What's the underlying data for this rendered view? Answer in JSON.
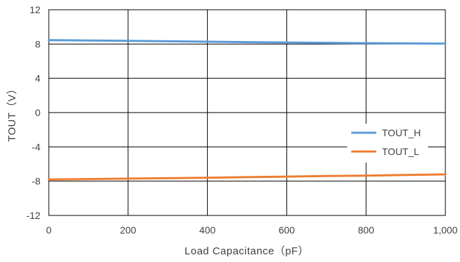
{
  "chart_data": {
    "type": "line",
    "title": "",
    "xlabel": "Load Capacitance（pF）",
    "ylabel": "TOUT（V）",
    "xlim": [
      0,
      1000
    ],
    "ylim": [
      -12,
      12
    ],
    "x_ticks": [
      0,
      200,
      400,
      600,
      800,
      1000
    ],
    "x_tick_labels": [
      "0",
      "200",
      "400",
      "600",
      "800",
      "1,000"
    ],
    "y_ticks": [
      -12,
      -8,
      -4,
      0,
      4,
      8,
      12
    ],
    "y_tick_labels": [
      "-12",
      "-8",
      "-4",
      "0",
      "4",
      "8",
      "12"
    ],
    "grid": true,
    "legend_position": "right",
    "series": [
      {
        "name": "TOUT_H",
        "color": "#5B9BD5",
        "x": [
          0,
          100,
          200,
          300,
          400,
          500,
          600,
          700,
          800,
          900,
          1000
        ],
        "y": [
          8.45,
          8.42,
          8.37,
          8.32,
          8.27,
          8.22,
          8.18,
          8.14,
          8.1,
          8.07,
          8.05
        ]
      },
      {
        "name": "TOUT_L",
        "color": "#ED7D31",
        "x": [
          0,
          100,
          200,
          300,
          400,
          500,
          600,
          700,
          800,
          900,
          1000
        ],
        "y": [
          -7.8,
          -7.75,
          -7.7,
          -7.65,
          -7.6,
          -7.53,
          -7.47,
          -7.4,
          -7.35,
          -7.28,
          -7.22
        ]
      }
    ]
  }
}
